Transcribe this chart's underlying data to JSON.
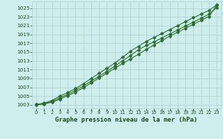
{
  "title": "Graphe pression niveau de la mer (hPa)",
  "xlabel_hours": [
    0,
    1,
    2,
    3,
    4,
    5,
    6,
    7,
    8,
    9,
    10,
    11,
    12,
    13,
    14,
    15,
    16,
    17,
    18,
    19,
    20,
    21,
    22,
    23
  ],
  "series": [
    {
      "name": "top",
      "values": [
        1003.1,
        1003.4,
        1004.0,
        1005.0,
        1005.8,
        1006.7,
        1007.8,
        1009.0,
        1010.2,
        1011.3,
        1012.5,
        1013.8,
        1015.2,
        1016.3,
        1017.4,
        1018.3,
        1019.2,
        1020.1,
        1021.0,
        1021.9,
        1022.8,
        1023.6,
        1024.5,
        1025.7
      ],
      "color": "#2d6a2d",
      "marker": "D",
      "markersize": 2.5,
      "linewidth": 0.8,
      "zorder": 3
    },
    {
      "name": "mid_high",
      "values": [
        1003.1,
        1003.3,
        1003.8,
        1004.6,
        1005.4,
        1006.3,
        1007.3,
        1008.4,
        1009.5,
        1010.6,
        1011.8,
        1013.0,
        1014.2,
        1015.5,
        1016.5,
        1017.3,
        1018.2,
        1019.1,
        1020.0,
        1020.9,
        1021.8,
        1022.7,
        1023.6,
        1025.1
      ],
      "color": "#2d6a2d",
      "marker": "D",
      "markersize": 2.5,
      "linewidth": 0.8,
      "zorder": 3
    },
    {
      "name": "bottom",
      "values": [
        1003.0,
        1003.2,
        1003.6,
        1004.3,
        1005.1,
        1005.9,
        1006.9,
        1008.0,
        1009.1,
        1010.2,
        1011.3,
        1012.4,
        1013.4,
        1014.5,
        1015.6,
        1016.6,
        1017.6,
        1018.6,
        1019.5,
        1020.4,
        1021.3,
        1022.2,
        1023.1,
        1025.7
      ],
      "color": "#2d6a2d",
      "marker": "D",
      "markersize": 2.5,
      "linewidth": 0.8,
      "zorder": 3
    }
  ],
  "yticks": [
    1003,
    1005,
    1007,
    1009,
    1011,
    1013,
    1015,
    1017,
    1019,
    1021,
    1023,
    1025
  ],
  "ylim": [
    1002.2,
    1026.5
  ],
  "xlim": [
    -0.5,
    23.5
  ],
  "bg_color": "#ceeeed",
  "grid_color": "#aacfcf",
  "text_color": "#1a4a1a",
  "tick_color": "#1a4a1a",
  "title_fontsize": 6.5,
  "tick_fontsize": 5.2
}
